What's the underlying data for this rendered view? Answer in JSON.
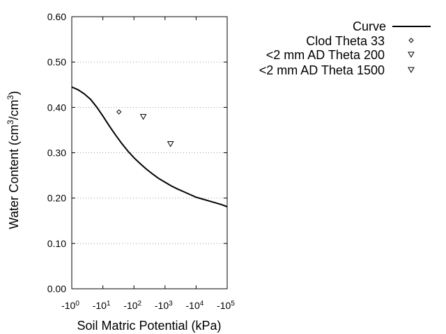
{
  "chart_data": {
    "type": "line",
    "xlabel": "Soil Matric Potential (kPa)",
    "ylabel_main": "Water Content (cm",
    "ylabel_sup1": "3",
    "ylabel_mid": "/cm",
    "ylabel_sup2": "3",
    "ylabel_end": ")",
    "x_scale": "log",
    "xlim": [
      1,
      100000
    ],
    "ylim": [
      0,
      0.6
    ],
    "grid": "horizontal dotted",
    "legend_position": "top-right outside",
    "y_ticks": [
      {
        "value": 0.0,
        "label": "0.00"
      },
      {
        "value": 0.1,
        "label": "0.10"
      },
      {
        "value": 0.2,
        "label": "0.20"
      },
      {
        "value": 0.3,
        "label": "0.30"
      },
      {
        "value": 0.4,
        "label": "0.40"
      },
      {
        "value": 0.5,
        "label": "0.50"
      },
      {
        "value": 0.6,
        "label": "0.60"
      }
    ],
    "x_ticks": [
      {
        "value": 1,
        "base": "-10",
        "exp": "0"
      },
      {
        "value": 10,
        "base": "-10",
        "exp": "1"
      },
      {
        "value": 100,
        "base": "-10",
        "exp": "2"
      },
      {
        "value": 1000,
        "base": "-10",
        "exp": "3"
      },
      {
        "value": 10000,
        "base": "-10",
        "exp": "4"
      },
      {
        "value": 100000,
        "base": "-10",
        "exp": "5"
      }
    ],
    "series": [
      {
        "name": "Curve",
        "kind": "line",
        "color": "#000000",
        "x": [
          1,
          1.58,
          2.51,
          3.98,
          6.31,
          10,
          15.8,
          25.1,
          39.8,
          63.1,
          100,
          158,
          251,
          398,
          631,
          1000,
          1585,
          2512,
          3981,
          6310,
          10000,
          15849,
          25119,
          39811,
          63096,
          100000
        ],
        "y": [
          0.445,
          0.439,
          0.43,
          0.418,
          0.401,
          0.381,
          0.36,
          0.34,
          0.321,
          0.304,
          0.289,
          0.276,
          0.264,
          0.253,
          0.243,
          0.235,
          0.227,
          0.22,
          0.214,
          0.208,
          0.202,
          0.198,
          0.194,
          0.19,
          0.186,
          0.181
        ]
      },
      {
        "name": "Clod Theta 33",
        "kind": "scatter",
        "marker": "diamond",
        "x": [
          33
        ],
        "y": [
          0.39
        ]
      },
      {
        "name": "<2 mm AD Theta 200",
        "kind": "scatter",
        "marker": "triangle-down",
        "x": [
          200
        ],
        "y": [
          0.38
        ]
      },
      {
        "name": "<2 mm AD Theta 1500",
        "kind": "scatter",
        "marker": "triangle-down",
        "x": [
          1500
        ],
        "y": [
          0.32
        ]
      }
    ]
  }
}
